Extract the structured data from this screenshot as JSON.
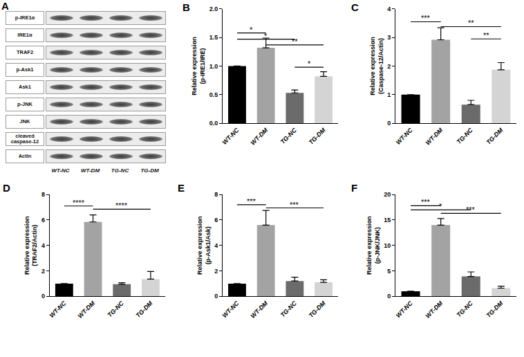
{
  "blot": {
    "label": "A",
    "rows": [
      "p-IRE1α",
      "IRE1α",
      "TRAF2",
      "p-Ask1",
      "Ask1",
      "p-JNK",
      "JNK",
      "cleaved caspase-12",
      "Actin"
    ],
    "lanes": [
      "WT-NC",
      "WT-DM",
      "TG-NC",
      "TG-DM"
    ]
  },
  "chart_data": [
    {
      "label": "B",
      "type": "bar",
      "categories": [
        "WT-NC",
        "WT-DM",
        "TG-NC",
        "TG-DM"
      ],
      "values": [
        1.0,
        1.32,
        0.53,
        0.82
      ],
      "errors": [
        0,
        0.17,
        0.05,
        0.08
      ],
      "colors": [
        "#000000",
        "#a3a3a3",
        "#6b6b6b",
        "#d4d4d4"
      ],
      "y_label": "Relative expression\n(p-IRE1/IRE)",
      "ylim": [
        0,
        2
      ],
      "yticks": [
        {
          "value": 0,
          "label": "0.0"
        },
        {
          "value": 0.5,
          "label": "0.5"
        },
        {
          "value": 1,
          "label": "1.0"
        },
        {
          "value": 1.5,
          "label": "1.5"
        },
        {
          "value": 2,
          "label": "2.0"
        }
      ],
      "significance": [
        {
          "from": "WT-NC",
          "to": "WT-DM",
          "y": 1.58,
          "text": "*"
        },
        {
          "from": "WT-NC",
          "to": "TG-NC",
          "y": 1.47,
          "text": "*"
        },
        {
          "from": "WT-DM",
          "to": "TG-DM",
          "y": 1.37,
          "text": "**"
        },
        {
          "from": "TG-NC",
          "to": "TG-DM",
          "y": 0.98,
          "text": "*"
        }
      ]
    },
    {
      "label": "C",
      "type": "bar",
      "categories": [
        "WT-NC",
        "WT-DM",
        "TG-NC",
        "TG-DM"
      ],
      "values": [
        1.0,
        2.92,
        0.65,
        1.87
      ],
      "errors": [
        0,
        0.42,
        0.15,
        0.25
      ],
      "colors": [
        "#000000",
        "#a3a3a3",
        "#6b6b6b",
        "#d4d4d4"
      ],
      "y_label": "Relative expression\n(Caspase-12/Actin)",
      "ylim": [
        0,
        4
      ],
      "yticks": [
        0,
        1,
        2,
        3,
        4
      ],
      "significance": [
        {
          "from": "WT-NC",
          "to": "WT-DM",
          "y": 3.55,
          "text": "***"
        },
        {
          "from": "WT-DM",
          "to": "TG-DM",
          "y": 3.38,
          "text": "**"
        },
        {
          "from": "TG-NC",
          "to": "TG-DM",
          "y": 2.95,
          "text": "**"
        }
      ]
    },
    {
      "label": "D",
      "type": "bar",
      "categories": [
        "WT-NC",
        "WT-DM",
        "TG-NC",
        "TG-DM"
      ],
      "values": [
        1.0,
        5.85,
        0.95,
        1.35
      ],
      "errors": [
        0,
        0.55,
        0.12,
        0.6
      ],
      "colors": [
        "#000000",
        "#a3a3a3",
        "#6b6b6b",
        "#d4d4d4"
      ],
      "y_label": "Relative expression\n(TRAF2/Actin)",
      "ylim": [
        0,
        8
      ],
      "yticks": [
        0,
        2,
        4,
        6,
        8
      ],
      "significance": [
        {
          "from": "WT-NC",
          "to": "WT-DM",
          "y": 7.1,
          "text": "****"
        },
        {
          "from": "WT-DM",
          "to": "TG-DM",
          "y": 6.85,
          "text": "****"
        }
      ]
    },
    {
      "label": "E",
      "type": "bar",
      "categories": [
        "WT-NC",
        "WT-DM",
        "TG-NC",
        "TG-DM"
      ],
      "values": [
        1.0,
        5.6,
        1.2,
        1.1
      ],
      "errors": [
        0,
        1.15,
        0.3,
        0.2
      ],
      "colors": [
        "#000000",
        "#a3a3a3",
        "#6b6b6b",
        "#d4d4d4"
      ],
      "y_label": "Relative expression\n(p-Ask1/Ask)",
      "ylim": [
        0,
        8
      ],
      "yticks": [
        0,
        2,
        4,
        6,
        8
      ],
      "significance": [
        {
          "from": "WT-NC",
          "to": "WT-DM",
          "y": 7.2,
          "text": "***"
        },
        {
          "from": "WT-DM",
          "to": "TG-DM",
          "y": 6.95,
          "text": "***"
        }
      ]
    },
    {
      "label": "F",
      "type": "bar",
      "categories": [
        "WT-NC",
        "WT-DM",
        "TG-NC",
        "TG-DM"
      ],
      "values": [
        1.0,
        14.0,
        3.9,
        1.6
      ],
      "errors": [
        0,
        1.3,
        0.9,
        0.4
      ],
      "colors": [
        "#000000",
        "#a3a3a3",
        "#6b6b6b",
        "#d4d4d4"
      ],
      "y_label": "Relative expression\n(p-JNK/JNK)",
      "ylim": [
        0,
        20
      ],
      "yticks": [
        0,
        5,
        10,
        15,
        20
      ],
      "significance": [
        {
          "from": "WT-NC",
          "to": "WT-DM",
          "y": 17.8,
          "text": "***"
        },
        {
          "from": "WT-NC",
          "to": "TG-NC",
          "y": 17.0,
          "text": "*"
        },
        {
          "from": "WT-DM",
          "to": "TG-DM",
          "y": 16.3,
          "text": "***"
        }
      ]
    }
  ]
}
